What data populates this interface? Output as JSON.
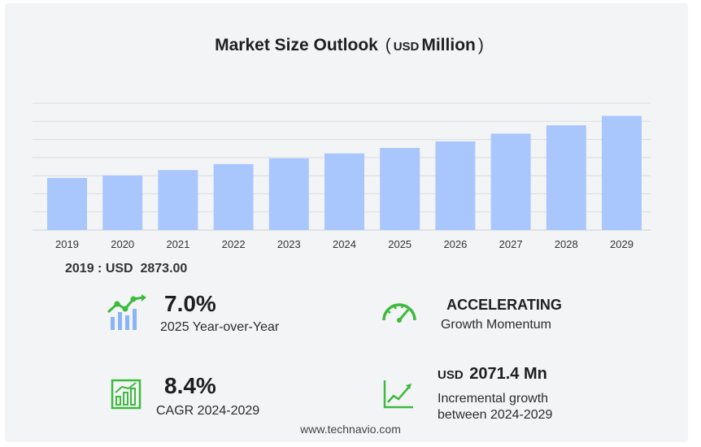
{
  "title": {
    "main": "Market Size Outlook",
    "open_paren": "(",
    "currency": "USD",
    "unit": "Million",
    "close_paren": ")"
  },
  "chart_data": {
    "type": "bar",
    "categories": [
      "2019",
      "2020",
      "2021",
      "2022",
      "2023",
      "2024",
      "2025",
      "2026",
      "2027",
      "2028",
      "2029"
    ],
    "values": [
      2873.0,
      3010,
      3310,
      3640,
      3960,
      4230,
      4530,
      4890,
      5320,
      5780,
      6300
    ],
    "ylim": [
      0,
      7000
    ],
    "grid": true,
    "bar_color": "#a9c7fd",
    "grid_color": "#d9dbe0"
  },
  "base_value_label": "2019 : USD  2873.00",
  "stats": {
    "yoy": {
      "value": "7.0%",
      "label": "2025 Year-over-Year"
    },
    "momentum": {
      "value": "ACCELERATING",
      "label": "Growth Momentum"
    },
    "cagr": {
      "value": "8.4%",
      "label": "CAGR 2024-2029"
    },
    "incremental": {
      "currency": "USD",
      "value": "2071.4 Mn",
      "label_line1": "Incremental growth",
      "label_line2": "between 2024-2029"
    }
  },
  "icons": {
    "yoy": "trend-bars-icon",
    "momentum": "speedometer-icon",
    "cagr": "growth-chart-icon",
    "incremental": "line-growth-icon",
    "icon_green": "#3dba3d",
    "icon_blue": "#8ab4f8"
  },
  "footer": "www.technavio.com"
}
